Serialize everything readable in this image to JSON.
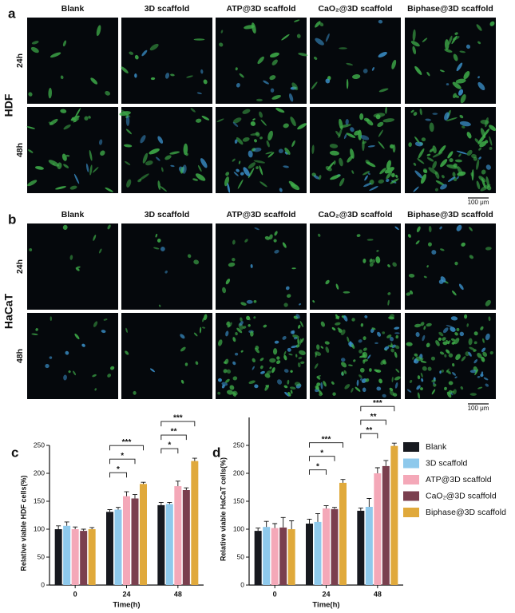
{
  "panels": [
    {
      "letter": "a",
      "cell_line": "HDF",
      "columns": [
        "Blank",
        "3D scaffold",
        "ATP@3D scaffold",
        "CaO₂@3D scaffold",
        "Biphase@3D scaffold"
      ],
      "rows": [
        "24h",
        "48h"
      ],
      "scale_bar": "100 μm"
    },
    {
      "letter": "b",
      "cell_line": "HaCaT",
      "columns": [
        "Blank",
        "3D scaffold",
        "ATP@3D scaffold",
        "CaO₂@3D scaffold",
        "Biphase@3D scaffold"
      ],
      "rows": [
        "24h",
        "48h"
      ],
      "scale_bar": "100 μm"
    }
  ],
  "legend": [
    {
      "name": "Blank",
      "color": "#17191f"
    },
    {
      "name": "3D scaffold",
      "color": "#8ec9ec"
    },
    {
      "name": "ATP@3D scaffold",
      "color": "#f4a8b8"
    },
    {
      "name": "CaO₂@3D scaffold",
      "color": "#7a3f4e"
    },
    {
      "name": "Biphase@3D scaffold",
      "color": "#e0a93b"
    }
  ],
  "chart_data": [
    {
      "type": "bar",
      "letter": "c",
      "y_label": "Relative viable HDF cells(%)",
      "x_label": "Time(h)",
      "categories": [
        "0",
        "24",
        "48"
      ],
      "ylim": [
        0,
        250
      ],
      "yticks": [
        0,
        50,
        100,
        150,
        200,
        250
      ],
      "series": [
        {
          "values": [
            100,
            131,
            143
          ],
          "errors": [
            6,
            4,
            5
          ]
        },
        {
          "values": [
            106,
            135,
            145
          ],
          "errors": [
            7,
            4,
            3
          ]
        },
        {
          "values": [
            100,
            159,
            177
          ],
          "errors": [
            4,
            8,
            9
          ]
        },
        {
          "values": [
            97,
            155,
            170
          ],
          "errors": [
            3,
            7,
            4
          ]
        },
        {
          "values": [
            100,
            181,
            222
          ],
          "errors": [
            3,
            3,
            5
          ]
        }
      ],
      "annotations": [
        {
          "text": "***",
          "category": 1,
          "from": 0,
          "to": 4
        },
        {
          "text": "*",
          "category": 1,
          "from": 0,
          "to": 3
        },
        {
          "text": "*",
          "category": 1,
          "from": 0,
          "to": 2
        },
        {
          "text": "***",
          "category": 2,
          "from": 0,
          "to": 4
        },
        {
          "text": "**",
          "category": 2,
          "from": 0,
          "to": 3
        },
        {
          "text": "*",
          "category": 2,
          "from": 0,
          "to": 2
        }
      ]
    },
    {
      "type": "bar",
      "letter": "d",
      "y_label": "Relative viable HaCaT cells(%)",
      "x_label": "Time(h)",
      "categories": [
        "0",
        "24",
        "48"
      ],
      "ylim": [
        0,
        300
      ],
      "yticks": [
        0,
        50,
        100,
        150,
        200,
        250
      ],
      "series": [
        {
          "values": [
            97,
            110,
            133
          ],
          "errors": [
            5,
            8,
            5
          ]
        },
        {
          "values": [
            104,
            113,
            140
          ],
          "errors": [
            10,
            15,
            15
          ]
        },
        {
          "values": [
            102,
            137,
            200
          ],
          "errors": [
            8,
            5,
            10
          ]
        },
        {
          "values": [
            103,
            136,
            213
          ],
          "errors": [
            18,
            3,
            10
          ]
        },
        {
          "values": [
            100,
            183,
            249
          ],
          "errors": [
            15,
            6,
            5
          ]
        }
      ],
      "annotations": [
        {
          "text": "***",
          "category": 1,
          "from": 0,
          "to": 4
        },
        {
          "text": "*",
          "category": 1,
          "from": 0,
          "to": 3
        },
        {
          "text": "*",
          "category": 1,
          "from": 0,
          "to": 2
        },
        {
          "text": "***",
          "category": 2,
          "from": 0,
          "to": 4
        },
        {
          "text": "**",
          "category": 2,
          "from": 0,
          "to": 3
        },
        {
          "text": "**",
          "category": 2,
          "from": 0,
          "to": 2
        }
      ]
    }
  ]
}
